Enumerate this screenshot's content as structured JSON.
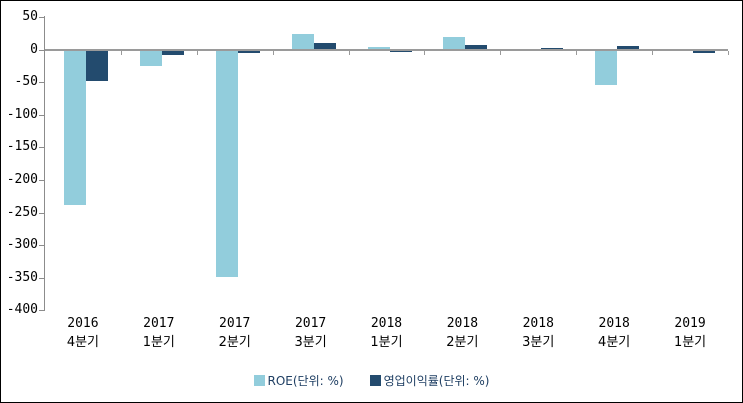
{
  "chart_data": {
    "type": "bar",
    "title": "",
    "categories": [
      {
        "year": "2016",
        "quarter": "4분기"
      },
      {
        "year": "2017",
        "quarter": "1분기"
      },
      {
        "year": "2017",
        "quarter": "2분기"
      },
      {
        "year": "2017",
        "quarter": "3분기"
      },
      {
        "year": "2018",
        "quarter": "1분기"
      },
      {
        "year": "2018",
        "quarter": "2분기"
      },
      {
        "year": "2018",
        "quarter": "3분기"
      },
      {
        "year": "2018",
        "quarter": "4분기"
      },
      {
        "year": "2019",
        "quarter": "1분기"
      }
    ],
    "series": [
      {
        "name": "ROE(단위: %)",
        "color": "#92CDDC",
        "values": [
          -237,
          -25,
          -348,
          23,
          3,
          19,
          0,
          -53,
          0
        ]
      },
      {
        "name": "영업이익률(단위: %)",
        "color": "#234B6E",
        "values": [
          -48,
          -8,
          -4,
          9,
          -3,
          6,
          2,
          4,
          -5
        ]
      }
    ],
    "y_axis": {
      "min": -400,
      "max": 50,
      "tick_step": 50,
      "tick_labels": [
        "50",
        "0",
        "-50",
        "-100",
        "-150",
        "-200",
        "-250",
        "-300",
        "-350",
        "-400"
      ]
    },
    "legend_position": "bottom",
    "grid": false,
    "colors": {
      "axis_line": "#8C8C8C",
      "zero_line": "#9A9A9A",
      "tick_label": "#000000",
      "legend_text": "#1F3F63",
      "background": "#FFFFFF",
      "border": "#000000"
    }
  }
}
